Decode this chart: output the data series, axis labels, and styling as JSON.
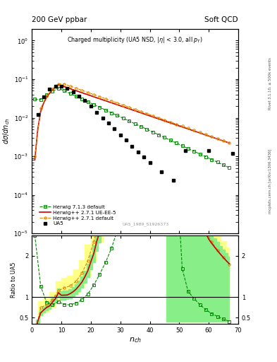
{
  "title_top_left": "200 GeV ppbar",
  "title_top_right": "Soft QCD",
  "main_title": "Charged multiplicity (UA5 NSD, |#eta| < 3.0, all p_{T})",
  "xlabel": "n_{ch}",
  "ylabel_main": "d#sigma/dn_{ch}",
  "ylabel_ratio": "Ratio to UA5",
  "right_label_top": "Rivet 3.1.10, ≥ 500k events",
  "right_label_bottom": "mcplots.cern.ch [arXiv:1306.3436]",
  "watermark": "UA5_1989_S1926373",
  "xlim": [
    0,
    70
  ],
  "ylim_main": [
    1e-05,
    2.0
  ],
  "ylim_ratio": [
    0.35,
    2.5
  ],
  "background_color": "#ffffff",
  "ua5_color": "#000000",
  "herwig_default_color": "#dd8800",
  "herwig_ueee5_color": "#cc0000",
  "herwig_713_color": "#008800",
  "band_yellow": "#ffff88",
  "band_green": "#88ee88",
  "legend_entries": [
    "UA5",
    "Herwig++ 2.7.1 default",
    "Herwig++ 2.7.1 UE-EE-5",
    "Herwig 7.1.3 default"
  ],
  "ua5_nch": [
    2,
    4,
    6,
    8,
    10,
    12,
    14,
    16,
    18,
    20,
    22,
    24,
    26,
    28,
    30,
    32,
    34,
    36,
    38,
    40,
    44,
    48,
    52,
    60,
    68
  ],
  "ua5_vals": [
    0.012,
    0.035,
    0.055,
    0.065,
    0.065,
    0.057,
    0.047,
    0.037,
    0.028,
    0.02,
    0.014,
    0.01,
    0.0072,
    0.0051,
    0.0036,
    0.0026,
    0.0018,
    0.0013,
    0.00095,
    0.00068,
    0.00039,
    0.00024,
    0.0014,
    0.0014,
    0.0012
  ]
}
